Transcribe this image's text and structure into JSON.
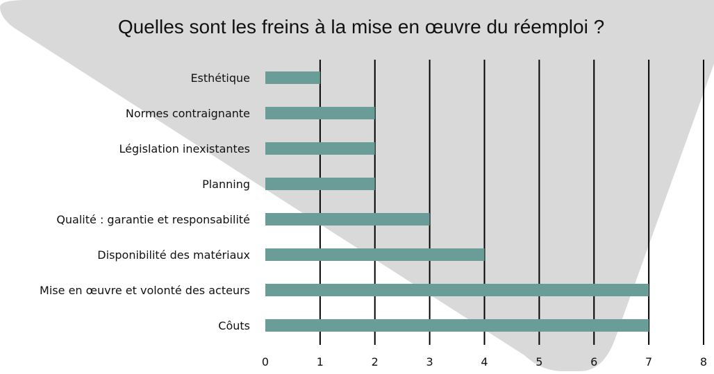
{
  "chart_data": {
    "type": "bar",
    "orientation": "horizontal",
    "title": "Quelles sont les freins à la mise en œuvre du réemploi ?",
    "categories": [
      "Esthétique",
      "Normes contraignante",
      "Législation inexistantes",
      "Planning",
      "Qualité : garantie et responsabilité",
      "Disponibilité des matériaux",
      "Mise en œuvre et volonté des acteurs",
      "Côuts"
    ],
    "values": [
      1,
      2,
      2,
      2,
      3,
      4,
      7,
      7
    ],
    "xlim": [
      0,
      8
    ],
    "xticks": [
      "0",
      "1",
      "2",
      "3",
      "4",
      "5",
      "6",
      "7",
      "8"
    ],
    "grid": "vertical",
    "bar_color": "#6a9c98",
    "background_shape_color": "#d9d9d9"
  }
}
